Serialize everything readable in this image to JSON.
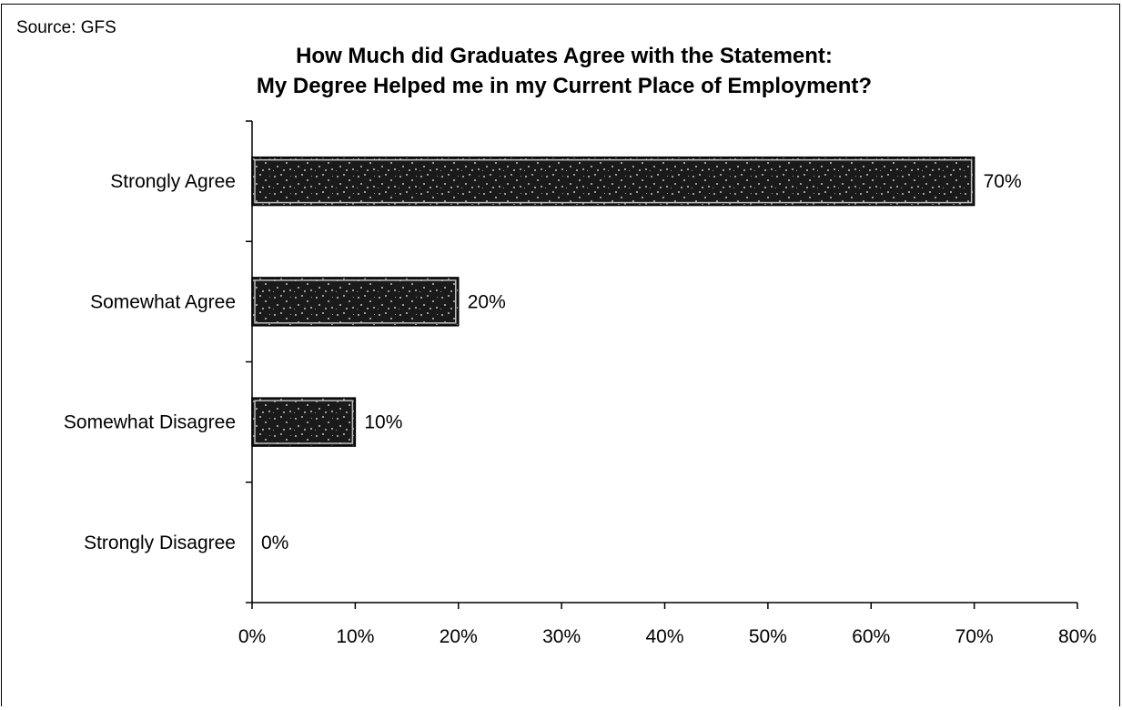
{
  "source_note": "Source: GFS",
  "chart_data": {
    "type": "bar",
    "orientation": "horizontal",
    "title_line1": "How Much did Graduates Agree with the Statement:",
    "title_line2": "My Degree Helped me in my Current Place of Employment?",
    "categories": [
      "Strongly Agree",
      "Somewhat Agree",
      "Somewhat Disagree",
      "Strongly Disagree"
    ],
    "values": [
      70,
      20,
      10,
      0
    ],
    "data_labels": [
      "70%",
      "20%",
      "10%",
      "0%"
    ],
    "xlim": [
      0,
      80
    ],
    "x_ticks": [
      0,
      10,
      20,
      30,
      40,
      50,
      60,
      70,
      80
    ],
    "x_tick_labels": [
      "0%",
      "10%",
      "20%",
      "30%",
      "40%",
      "50%",
      "60%",
      "70%",
      "80%"
    ],
    "bar_color": "#1a1a1a",
    "speckle_color": "#9a9a9a",
    "grid": false,
    "legend": "none"
  }
}
